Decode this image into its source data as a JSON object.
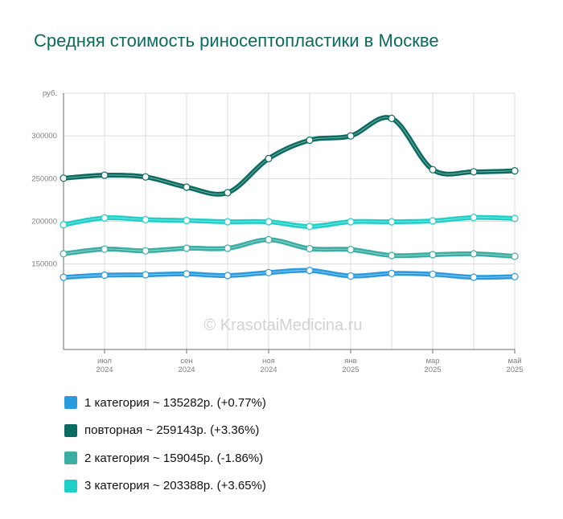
{
  "title": "Средняя стоимость риносептопластики в Москве",
  "watermark": "© KrasotaiMedicina.ru",
  "chart_data": {
    "type": "line",
    "title": "Средняя стоимость риносептопластики в Москве",
    "ylabel": "руб.",
    "ylim": [
      50000,
      350000
    ],
    "yticks": [
      150000,
      200000,
      250000,
      300000
    ],
    "x": [
      "2024-06",
      "2024-07",
      "2024-08",
      "2024-09",
      "2024-10",
      "2024-11",
      "2024-12",
      "2025-01",
      "2025-02",
      "2025-03",
      "2025-04",
      "2025-05"
    ],
    "xtick_labels": [
      {
        "month": "июл",
        "year": "2024"
      },
      {
        "month": "сен",
        "year": "2024"
      },
      {
        "month": "ноя",
        "year": "2024"
      },
      {
        "month": "янв",
        "year": "2025"
      },
      {
        "month": "мар",
        "year": "2025"
      },
      {
        "month": "май",
        "year": "2025"
      }
    ],
    "grid": true,
    "legend_position": "bottom",
    "series": [
      {
        "name": "1 категория",
        "summary": "1 категория ~ 135282р. (+0.77%)",
        "color": "#2b9be0",
        "values": [
          134500,
          137000,
          137500,
          138500,
          136500,
          140000,
          142500,
          136000,
          139000,
          138000,
          134500,
          135282
        ]
      },
      {
        "name": "повторная",
        "summary": "повторная ~ 259143р. (+3.36%)",
        "color": "#0a6b60",
        "values": [
          250500,
          254000,
          252000,
          240000,
          233500,
          273500,
          295000,
          300000,
          320500,
          260500,
          258000,
          259143
        ]
      },
      {
        "name": "2 категория",
        "summary": "2 категория ~ 159045р. (-1.86%)",
        "color": "#3aaea3",
        "values": [
          162000,
          167500,
          165500,
          168500,
          168500,
          178500,
          168000,
          167000,
          160000,
          161000,
          162000,
          159045
        ]
      },
      {
        "name": "3 категория",
        "summary": "3 категория ~ 203388р. (+3.65%)",
        "color": "#1fcfc8",
        "values": [
          196000,
          204000,
          202000,
          201000,
          199500,
          199500,
          194000,
          199500,
          199500,
          200500,
          204500,
          203388
        ]
      }
    ]
  }
}
